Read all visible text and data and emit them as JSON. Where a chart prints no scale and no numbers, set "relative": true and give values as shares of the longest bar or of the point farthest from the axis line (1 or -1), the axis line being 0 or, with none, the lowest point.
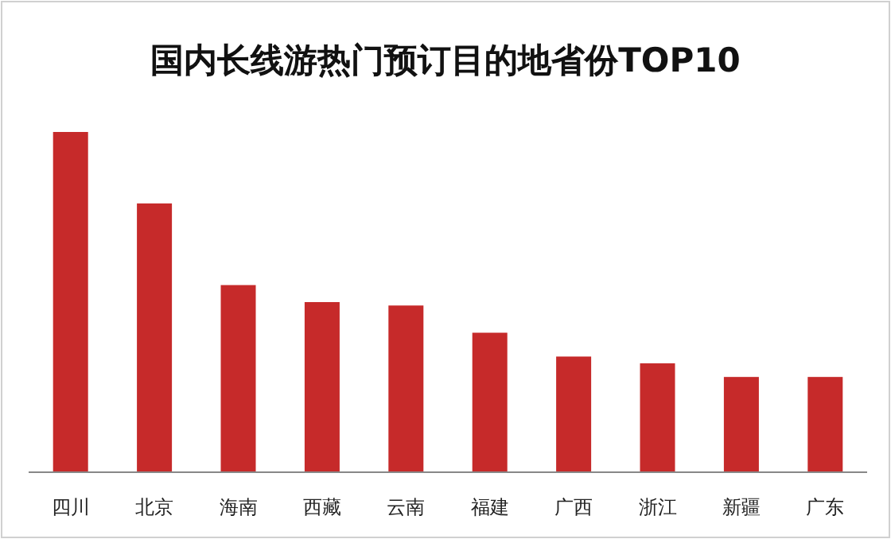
{
  "chart_data": {
    "type": "bar",
    "title": "国内长线游热门预订目的地省份TOP10",
    "relative": true,
    "categories": [
      "四川",
      "北京",
      "海南",
      "西藏",
      "云南",
      "福建",
      "广西",
      "浙江",
      "新疆",
      "广东"
    ],
    "values": [
      1,
      0.79,
      0.55,
      0.5,
      0.49,
      0.41,
      0.34,
      0.32,
      0.28,
      0.28
    ],
    "color": "#c62a2a"
  }
}
